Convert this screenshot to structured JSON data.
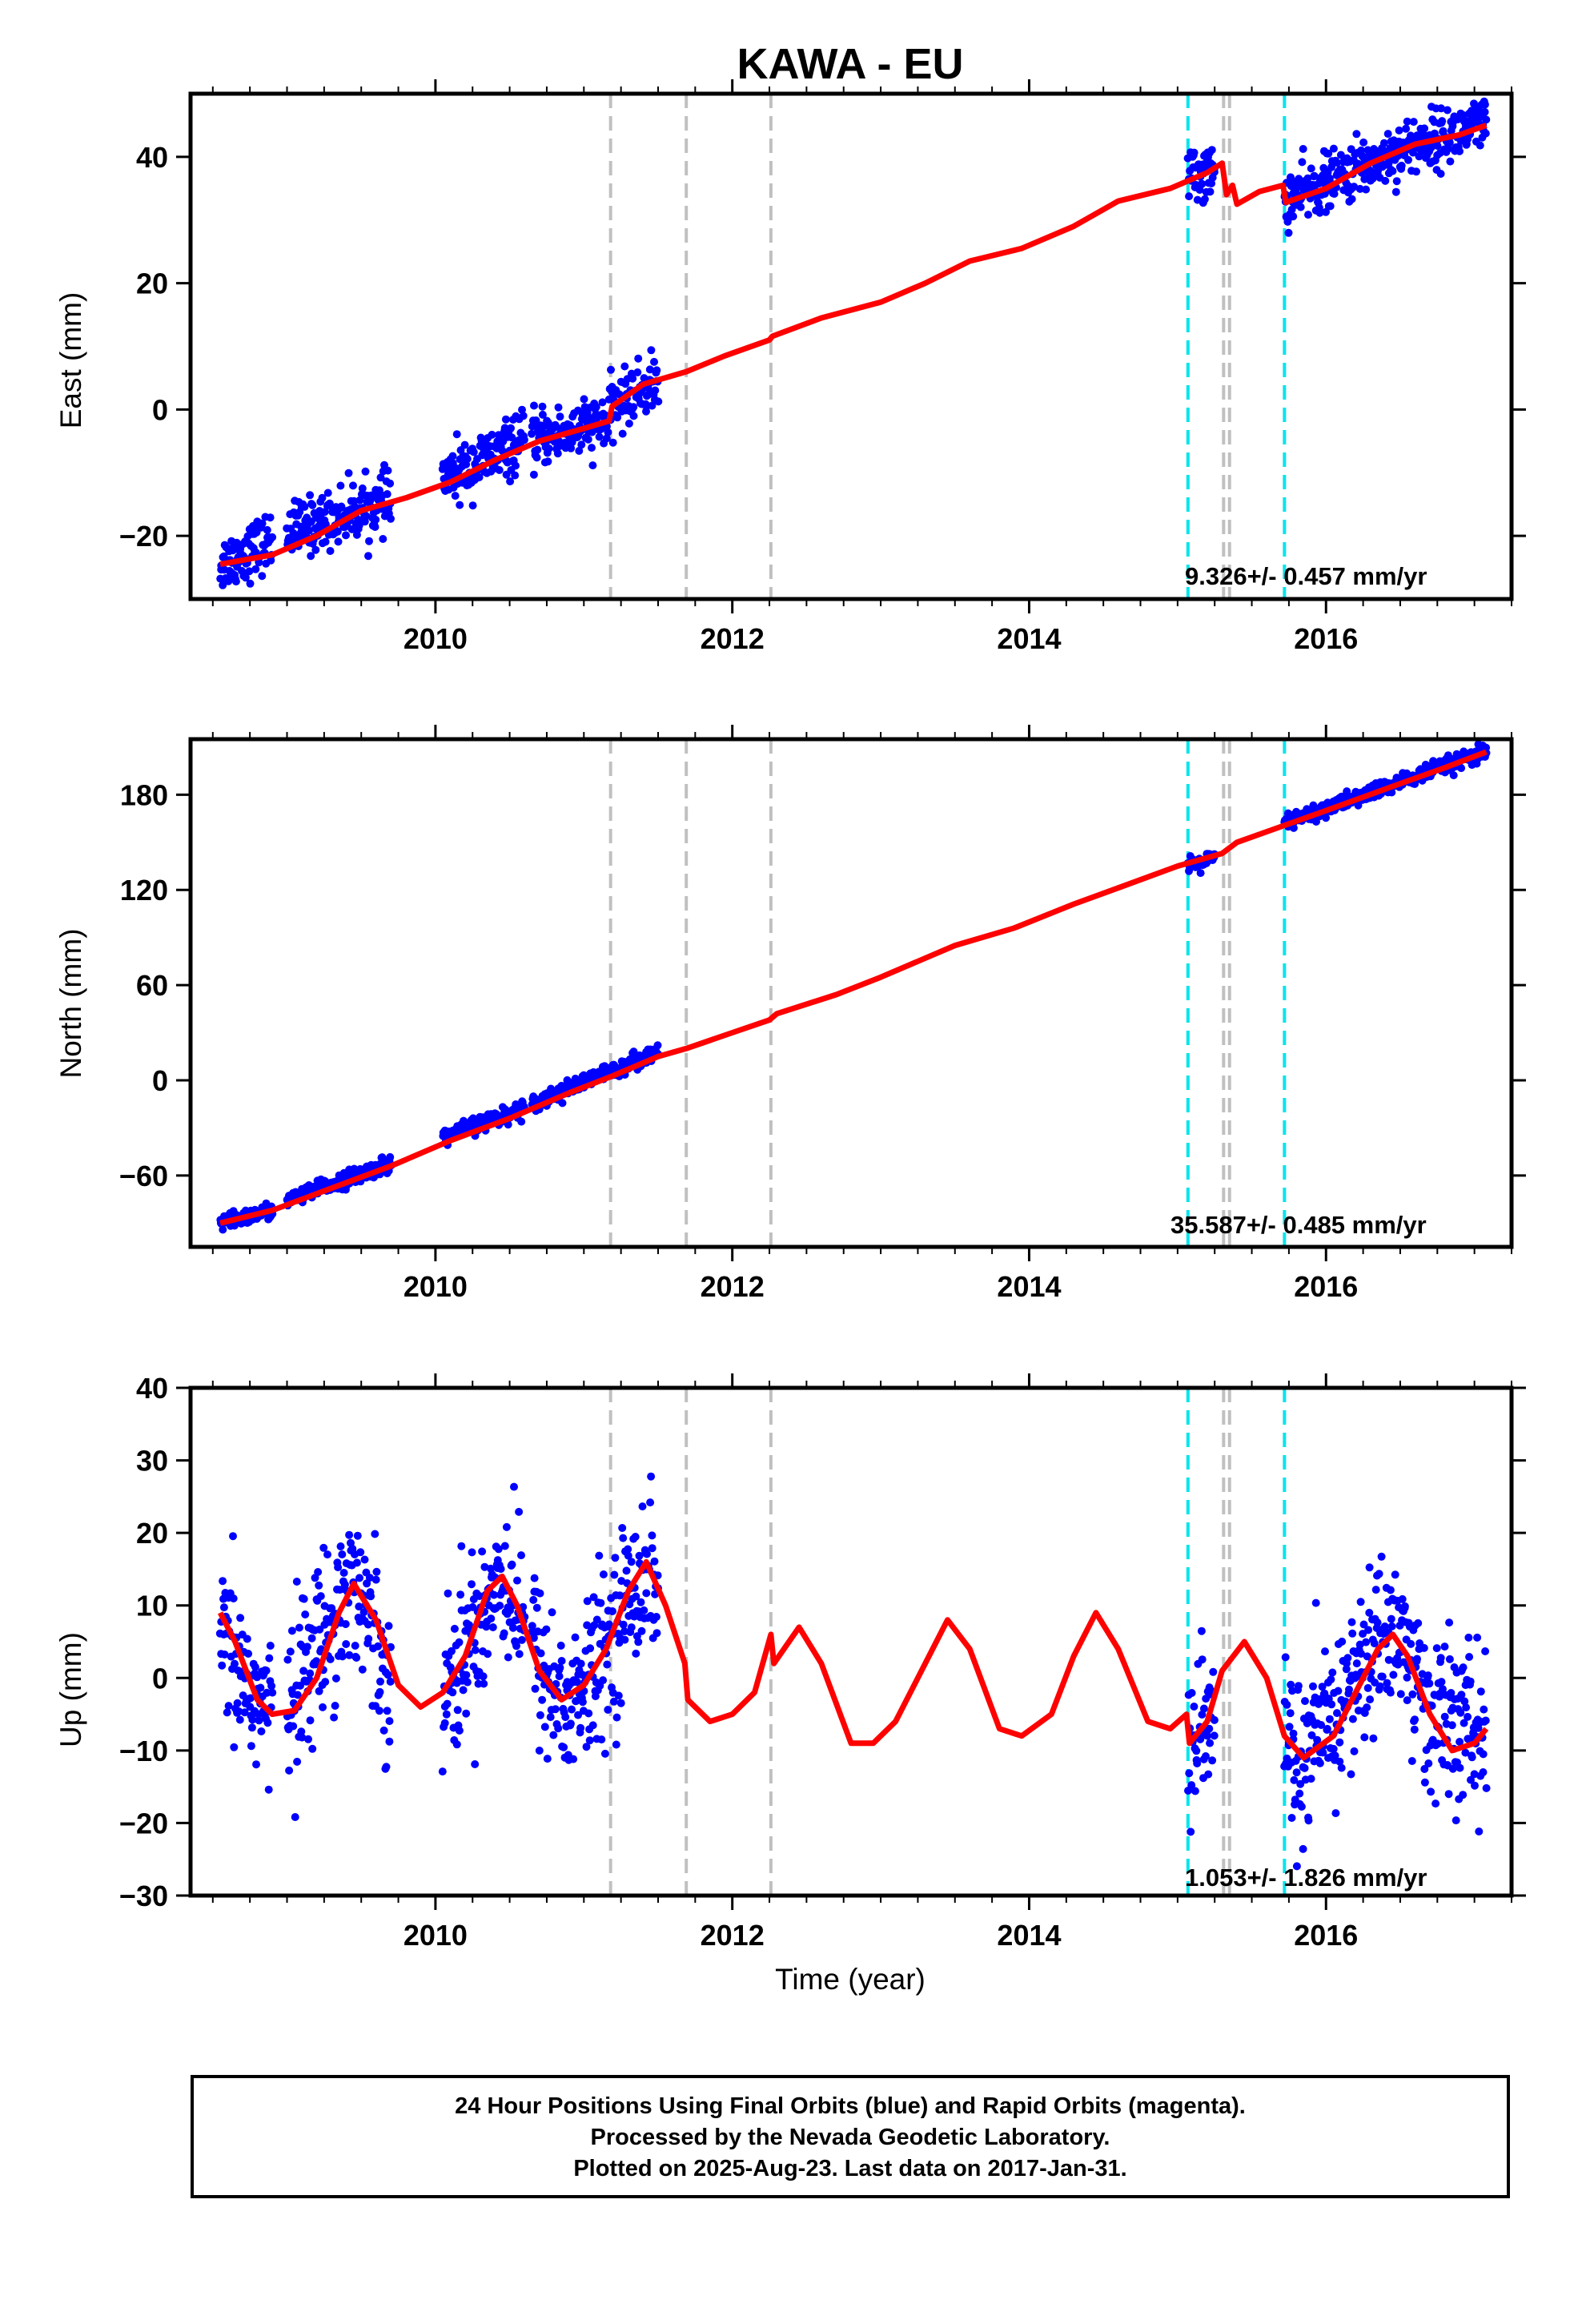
{
  "title": "KAWA - EU",
  "footer": {
    "line1": "24 Hour Positions Using Final Orbits (blue) and Rapid Orbits (magenta).",
    "line2": "Processed by the Nevada Geodetic Laboratory.",
    "line3": "Plotted on 2025-Aug-23. Last data on 2017-Jan-31."
  },
  "colors": {
    "data": "#0000ff",
    "model": "#ff0000",
    "break_gray": "#c0c0c0",
    "break_cyan": "#00e5ee"
  },
  "chart_data": [
    {
      "type": "scatter",
      "name": "east",
      "ylabel": "East (mm)",
      "xlabel": "",
      "xlim": [
        2008.35,
        2017.25
      ],
      "ylim": [
        -30,
        50
      ],
      "x_ticks": [
        2010,
        2012,
        2014,
        2016
      ],
      "x_tick_labels": [
        "2010",
        "2012",
        "2014",
        "2016"
      ],
      "y_ticks": [
        -20,
        0,
        20,
        40
      ],
      "y_tick_labels": [
        "−20",
        "0",
        "20",
        "40"
      ],
      "rate_label": "9.326+/- 0.457 mm/yr",
      "vlines_gray": [
        2011.18,
        2011.69,
        2012.26,
        2015.31,
        2015.35
      ],
      "vlines_cyan": [
        2015.07,
        2015.72
      ],
      "data_segments": [
        [
          2008.55,
          2008.9
        ],
        [
          2009.0,
          2009.7
        ],
        [
          2010.05,
          2010.6
        ],
        [
          2010.65,
          2011.5
        ],
        [
          2015.07,
          2015.25
        ],
        [
          2015.72,
          2017.08
        ]
      ],
      "model_points": [
        [
          2008.55,
          -24.5
        ],
        [
          2008.9,
          -23
        ],
        [
          2009.2,
          -20
        ],
        [
          2009.5,
          -16
        ],
        [
          2009.8,
          -14
        ],
        [
          2010.1,
          -11.5
        ],
        [
          2010.4,
          -8
        ],
        [
          2010.7,
          -5
        ],
        [
          2011.0,
          -3
        ],
        [
          2011.17,
          -1.8
        ],
        [
          2011.19,
          0.5
        ],
        [
          2011.4,
          4
        ],
        [
          2011.69,
          6
        ],
        [
          2011.95,
          8.5
        ],
        [
          2012.25,
          11
        ],
        [
          2012.27,
          11.6
        ],
        [
          2012.6,
          14.5
        ],
        [
          2013.0,
          17
        ],
        [
          2013.3,
          20
        ],
        [
          2013.6,
          23.5
        ],
        [
          2013.95,
          25.5
        ],
        [
          2014.3,
          29
        ],
        [
          2014.6,
          33
        ],
        [
          2014.95,
          35
        ],
        [
          2015.2,
          37.5
        ],
        [
          2015.3,
          39
        ],
        [
          2015.33,
          34
        ],
        [
          2015.37,
          35.5
        ],
        [
          2015.4,
          32.5
        ],
        [
          2015.55,
          34.5
        ],
        [
          2015.71,
          35.5
        ],
        [
          2015.73,
          32.8
        ],
        [
          2016.0,
          35
        ],
        [
          2016.3,
          39
        ],
        [
          2016.6,
          42
        ],
        [
          2016.9,
          43.5
        ],
        [
          2017.08,
          45
        ]
      ],
      "scatter_base": [
        [
          2008.55,
          -24.5
        ],
        [
          2009.0,
          -19.5
        ],
        [
          2009.4,
          -16.5
        ],
        [
          2009.7,
          -14.5
        ],
        [
          2010.1,
          -10.5
        ],
        [
          2010.6,
          -5
        ],
        [
          2011.0,
          -3
        ],
        [
          2011.17,
          -1.8
        ],
        [
          2011.19,
          0.5
        ],
        [
          2011.5,
          4.5
        ],
        [
          2015.07,
          37
        ],
        [
          2015.25,
          37.5
        ],
        [
          2015.72,
          33
        ],
        [
          2016.3,
          39
        ],
        [
          2016.6,
          42
        ],
        [
          2017.08,
          45
        ]
      ],
      "scatter_noise": 2.2
    },
    {
      "type": "scatter",
      "name": "north",
      "ylabel": "North (mm)",
      "xlabel": "",
      "xlim": [
        2008.35,
        2017.25
      ],
      "ylim": [
        -105,
        215
      ],
      "x_ticks": [
        2010,
        2012,
        2014,
        2016
      ],
      "x_tick_labels": [
        "2010",
        "2012",
        "2014",
        "2016"
      ],
      "y_ticks": [
        -60,
        0,
        60,
        120,
        180
      ],
      "y_tick_labels": [
        "−60",
        "0",
        "60",
        "120",
        "180"
      ],
      "rate_label": "35.587+/- 0.485 mm/yr",
      "vlines_gray": [
        2011.18,
        2011.69,
        2012.26,
        2015.31,
        2015.35
      ],
      "vlines_cyan": [
        2015.07,
        2015.72
      ],
      "data_segments": [
        [
          2008.55,
          2008.9
        ],
        [
          2009.0,
          2009.7
        ],
        [
          2010.05,
          2010.6
        ],
        [
          2010.65,
          2011.5
        ],
        [
          2015.07,
          2015.25
        ],
        [
          2015.72,
          2017.08
        ]
      ],
      "model_points": [
        [
          2008.55,
          -90
        ],
        [
          2008.9,
          -82
        ],
        [
          2009.3,
          -68
        ],
        [
          2009.7,
          -54
        ],
        [
          2010.1,
          -38
        ],
        [
          2010.5,
          -24
        ],
        [
          2010.9,
          -8
        ],
        [
          2011.2,
          3
        ],
        [
          2011.5,
          15
        ],
        [
          2011.69,
          20
        ],
        [
          2012.0,
          30
        ],
        [
          2012.25,
          38
        ],
        [
          2012.3,
          42
        ],
        [
          2012.7,
          54
        ],
        [
          2013.0,
          65
        ],
        [
          2013.5,
          85
        ],
        [
          2013.9,
          96
        ],
        [
          2014.3,
          111
        ],
        [
          2014.65,
          123
        ],
        [
          2015.0,
          135
        ],
        [
          2015.3,
          143
        ],
        [
          2015.4,
          150
        ],
        [
          2015.7,
          160
        ],
        [
          2016.0,
          170
        ],
        [
          2016.5,
          187
        ],
        [
          2016.8,
          197
        ],
        [
          2017.08,
          207
        ]
      ],
      "scatter_base": [
        [
          2008.55,
          -90
        ],
        [
          2008.9,
          -82
        ],
        [
          2009.0,
          -76
        ],
        [
          2009.7,
          -52
        ],
        [
          2010.05,
          -36
        ],
        [
          2010.6,
          -17
        ],
        [
          2010.65,
          -15
        ],
        [
          2011.5,
          18
        ],
        [
          2015.07,
          134
        ],
        [
          2015.25,
          140
        ],
        [
          2015.72,
          162
        ],
        [
          2017.08,
          207
        ]
      ],
      "scatter_noise": 2.5
    },
    {
      "type": "scatter",
      "name": "up",
      "ylabel": "Up (mm)",
      "xlabel": "Time (year)",
      "xlim": [
        2008.35,
        2017.25
      ],
      "ylim": [
        -30,
        40
      ],
      "x_ticks": [
        2010,
        2012,
        2014,
        2016
      ],
      "x_tick_labels": [
        "2010",
        "2012",
        "2014",
        "2016"
      ],
      "y_ticks": [
        -30,
        -20,
        -10,
        0,
        10,
        20,
        30,
        40
      ],
      "y_tick_labels": [
        "−30",
        "−20",
        "−10",
        "0",
        "10",
        "20",
        "30",
        "40"
      ],
      "rate_label": "1.053+/- 1.826 mm/yr",
      "vlines_gray": [
        2011.18,
        2011.69,
        2012.26,
        2015.31,
        2015.35
      ],
      "vlines_cyan": [
        2015.07,
        2015.72
      ],
      "data_segments": [
        [
          2008.55,
          2008.9
        ],
        [
          2009.0,
          2009.7
        ],
        [
          2010.05,
          2010.6
        ],
        [
          2010.65,
          2011.5
        ],
        [
          2015.07,
          2015.25
        ],
        [
          2015.72,
          2017.08
        ]
      ],
      "model_points": [
        [
          2008.55,
          9
        ],
        [
          2008.65,
          5
        ],
        [
          2008.8,
          -3
        ],
        [
          2008.9,
          -5
        ],
        [
          2009.05,
          -4.5
        ],
        [
          2009.2,
          0
        ],
        [
          2009.35,
          9
        ],
        [
          2009.45,
          13
        ],
        [
          2009.6,
          8
        ],
        [
          2009.75,
          -1
        ],
        [
          2009.9,
          -4
        ],
        [
          2010.05,
          -2
        ],
        [
          2010.2,
          3
        ],
        [
          2010.35,
          12
        ],
        [
          2010.45,
          14
        ],
        [
          2010.55,
          10
        ],
        [
          2010.7,
          1
        ],
        [
          2010.85,
          -3
        ],
        [
          2011.0,
          -1
        ],
        [
          2011.15,
          4
        ],
        [
          2011.3,
          12
        ],
        [
          2011.42,
          16
        ],
        [
          2011.55,
          10
        ],
        [
          2011.68,
          2
        ],
        [
          2011.7,
          -3
        ],
        [
          2011.85,
          -6
        ],
        [
          2012.0,
          -5
        ],
        [
          2012.15,
          -2
        ],
        [
          2012.26,
          6
        ],
        [
          2012.28,
          2
        ],
        [
          2012.45,
          7
        ],
        [
          2012.6,
          2
        ],
        [
          2012.8,
          -9
        ],
        [
          2012.95,
          -9
        ],
        [
          2013.1,
          -6
        ],
        [
          2013.25,
          0
        ],
        [
          2013.45,
          8
        ],
        [
          2013.6,
          4
        ],
        [
          2013.8,
          -7
        ],
        [
          2013.95,
          -8
        ],
        [
          2014.15,
          -5
        ],
        [
          2014.3,
          3
        ],
        [
          2014.45,
          9
        ],
        [
          2014.6,
          4
        ],
        [
          2014.8,
          -6
        ],
        [
          2014.95,
          -7
        ],
        [
          2015.06,
          -5
        ],
        [
          2015.08,
          -9
        ],
        [
          2015.2,
          -6
        ],
        [
          2015.3,
          1
        ],
        [
          2015.45,
          5
        ],
        [
          2015.6,
          0
        ],
        [
          2015.72,
          -8
        ],
        [
          2015.85,
          -11
        ],
        [
          2016.05,
          -8
        ],
        [
          2016.2,
          -2
        ],
        [
          2016.35,
          4
        ],
        [
          2016.45,
          6
        ],
        [
          2016.55,
          3
        ],
        [
          2016.7,
          -5
        ],
        [
          2016.85,
          -10
        ],
        [
          2017.0,
          -9
        ],
        [
          2017.08,
          -7
        ]
      ],
      "scatter_base": [
        [
          2008.55,
          5
        ],
        [
          2008.9,
          -6
        ],
        [
          2009.0,
          -3
        ],
        [
          2009.45,
          14
        ],
        [
          2009.7,
          0
        ],
        [
          2010.05,
          -3
        ],
        [
          2010.45,
          15
        ],
        [
          2010.6,
          8
        ],
        [
          2010.65,
          5
        ],
        [
          2010.85,
          -4
        ],
        [
          2011.0,
          -2
        ],
        [
          2011.42,
          16
        ],
        [
          2011.5,
          12
        ],
        [
          2015.07,
          -10
        ],
        [
          2015.25,
          -6
        ],
        [
          2015.72,
          -8
        ],
        [
          2015.85,
          -12
        ],
        [
          2016.45,
          8
        ],
        [
          2016.7,
          -5
        ],
        [
          2017.08,
          -8
        ]
      ],
      "scatter_noise": 5.5
    }
  ]
}
